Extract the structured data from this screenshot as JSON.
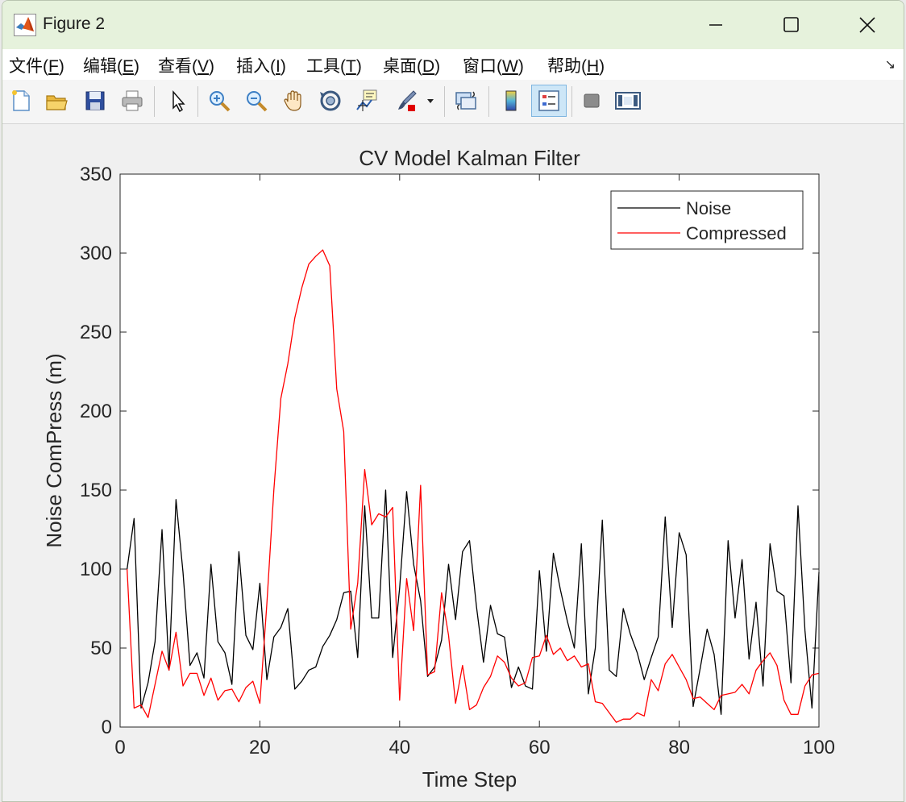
{
  "window": {
    "title": "Figure 2"
  },
  "menu": [
    {
      "label": "文件(F)",
      "pre": "文件(",
      "key": "F",
      "post": ")"
    },
    {
      "label": "编辑(E)",
      "pre": "编辑(",
      "key": "E",
      "post": ")"
    },
    {
      "label": "查看(V)",
      "pre": "查看(",
      "key": "V",
      "post": ")"
    },
    {
      "label": "插入(I)",
      "pre": "插入(",
      "key": "I",
      "post": ")"
    },
    {
      "label": "工具(T)",
      "pre": "工具(",
      "key": "T",
      "post": ")"
    },
    {
      "label": "桌面(D)",
      "pre": "桌面(",
      "key": "D",
      "post": ")"
    },
    {
      "label": "窗口(W)",
      "pre": "窗口(",
      "key": "W",
      "post": ")"
    },
    {
      "label": "帮助(H)",
      "pre": "帮助(",
      "key": "H",
      "post": ")"
    }
  ],
  "toolbar": {
    "items": [
      "new-file-icon",
      "open-folder-icon",
      "save-icon",
      "print-icon",
      "pointer-icon",
      "zoom-in-icon",
      "zoom-out-icon",
      "pan-hand-icon",
      "rotate-3d-icon",
      "data-cursor-icon",
      "brush-icon",
      "link-plot-icon",
      "colorbar-icon",
      "legend-icon",
      "hide-plot-tools-icon",
      "show-plot-tools-icon"
    ]
  },
  "chart_data": {
    "type": "line",
    "title": "CV Model Kalman Filter",
    "xlabel": "Time Step",
    "ylabel": "Noise ComPress (m)",
    "xlim": [
      0,
      100
    ],
    "ylim": [
      0,
      350
    ],
    "xticks": [
      0,
      20,
      40,
      60,
      80,
      100
    ],
    "yticks": [
      0,
      50,
      100,
      150,
      200,
      250,
      300,
      350
    ],
    "grid": false,
    "legend_position": "top-right",
    "series": [
      {
        "name": "Noise",
        "color": "#000000",
        "x": [
          1,
          2,
          3,
          4,
          5,
          6,
          7,
          8,
          9,
          10,
          11,
          12,
          13,
          14,
          15,
          16,
          17,
          18,
          19,
          20,
          21,
          22,
          23,
          24,
          25,
          26,
          27,
          28,
          29,
          30,
          31,
          32,
          33,
          34,
          35,
          36,
          37,
          38,
          39,
          40,
          41,
          42,
          43,
          44,
          45,
          46,
          47,
          48,
          49,
          50,
          51,
          52,
          53,
          54,
          55,
          56,
          57,
          58,
          59,
          60,
          61,
          62,
          63,
          64,
          65,
          66,
          67,
          68,
          69,
          70,
          71,
          72,
          73,
          74,
          75,
          76,
          77,
          78,
          79,
          80,
          81,
          82,
          83,
          84,
          85,
          86,
          87,
          88,
          89,
          90,
          91,
          92,
          93,
          94,
          95,
          96,
          97,
          98,
          99,
          100
        ],
        "values": [
          100,
          132,
          12,
          28,
          54,
          125,
          36,
          144,
          98,
          39,
          47,
          31,
          103,
          54,
          47,
          27,
          111,
          58,
          49,
          91,
          30,
          57,
          63,
          75,
          24,
          29,
          36,
          38,
          51,
          58,
          68,
          85,
          86,
          44,
          140,
          69,
          69,
          150,
          44,
          88,
          149,
          103,
          80,
          32,
          38,
          55,
          103,
          68,
          111,
          118,
          76,
          41,
          77,
          59,
          57,
          25,
          38,
          26,
          24,
          99,
          48,
          110,
          87,
          67,
          50,
          116,
          21,
          50,
          131,
          36,
          32,
          75,
          59,
          47,
          30,
          44,
          57,
          133,
          63,
          123,
          109,
          13,
          37,
          62,
          46,
          8,
          118,
          69,
          106,
          43,
          79,
          26,
          116,
          86,
          83,
          28,
          140,
          61,
          12,
          98
        ]
      },
      {
        "name": "Compressed",
        "color": "#ff0000",
        "x": [
          1,
          2,
          3,
          4,
          5,
          6,
          7,
          8,
          9,
          10,
          11,
          12,
          13,
          14,
          15,
          16,
          17,
          18,
          19,
          20,
          21,
          22,
          23,
          24,
          25,
          26,
          27,
          28,
          29,
          30,
          31,
          32,
          33,
          34,
          35,
          36,
          37,
          38,
          39,
          40,
          41,
          42,
          43,
          44,
          45,
          46,
          47,
          48,
          49,
          50,
          51,
          52,
          53,
          54,
          55,
          56,
          57,
          58,
          59,
          60,
          61,
          62,
          63,
          64,
          65,
          66,
          67,
          68,
          69,
          70,
          71,
          72,
          73,
          74,
          75,
          76,
          77,
          78,
          79,
          80,
          81,
          82,
          83,
          84,
          85,
          86,
          87,
          88,
          89,
          90,
          91,
          92,
          93,
          94,
          95,
          96,
          97,
          98,
          99,
          100
        ],
        "values": [
          100,
          12,
          14,
          6,
          27,
          48,
          36,
          60,
          26,
          34,
          34,
          20,
          31,
          17,
          23,
          24,
          16,
          25,
          29,
          15,
          78,
          150,
          208,
          230,
          259,
          278,
          293,
          298,
          302,
          292,
          214,
          187,
          62,
          91,
          163,
          128,
          135,
          133,
          139,
          17,
          94,
          61,
          153,
          33,
          35,
          85,
          58,
          15,
          39,
          11,
          14,
          25,
          32,
          45,
          41,
          31,
          26,
          28,
          44,
          45,
          58,
          46,
          50,
          42,
          45,
          38,
          40,
          16,
          15,
          9,
          3,
          5,
          5,
          9,
          7,
          30,
          23,
          40,
          46,
          38,
          30,
          18,
          19,
          15,
          11,
          20,
          21,
          22,
          27,
          21,
          36,
          42,
          47,
          39,
          17,
          8,
          8,
          26,
          33,
          34
        ]
      }
    ]
  }
}
